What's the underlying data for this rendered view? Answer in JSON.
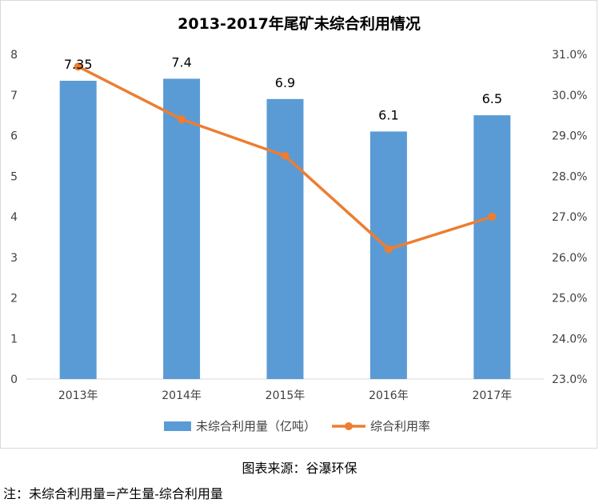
{
  "chart_data": {
    "type": "bar",
    "title": "2013-2017年尾矿未综合利用情况",
    "categories": [
      "2013年",
      "2014年",
      "2015年",
      "2016年",
      "2017年"
    ],
    "series": [
      {
        "name": "未综合利用量（亿吨）",
        "type": "bar",
        "axis": "left",
        "color": "#5b9bd5",
        "values": [
          7.35,
          7.4,
          6.9,
          6.1,
          6.5
        ],
        "data_labels": [
          "7.35",
          "7.4",
          "6.9",
          "6.1",
          "6.5"
        ]
      },
      {
        "name": "综合利用率",
        "type": "line",
        "axis": "right",
        "color": "#ed7d31",
        "values": [
          30.7,
          29.4,
          28.5,
          26.2,
          27.0
        ]
      }
    ],
    "y_left": {
      "min": 0,
      "max": 8,
      "step": 1,
      "ticks": [
        "0",
        "1",
        "2",
        "3",
        "4",
        "5",
        "6",
        "7",
        "8"
      ]
    },
    "y_right": {
      "min": 23,
      "max": 31,
      "step": 1,
      "ticks": [
        "23.0%",
        "24.0%",
        "25.0%",
        "26.0%",
        "27.0%",
        "28.0%",
        "29.0%",
        "30.0%",
        "31.0%"
      ]
    },
    "grid": false,
    "legend_position": "bottom"
  },
  "source_text": "图表来源：谷瀑环保",
  "note_text": "注：未综合利用量=产生量-综合利用量"
}
